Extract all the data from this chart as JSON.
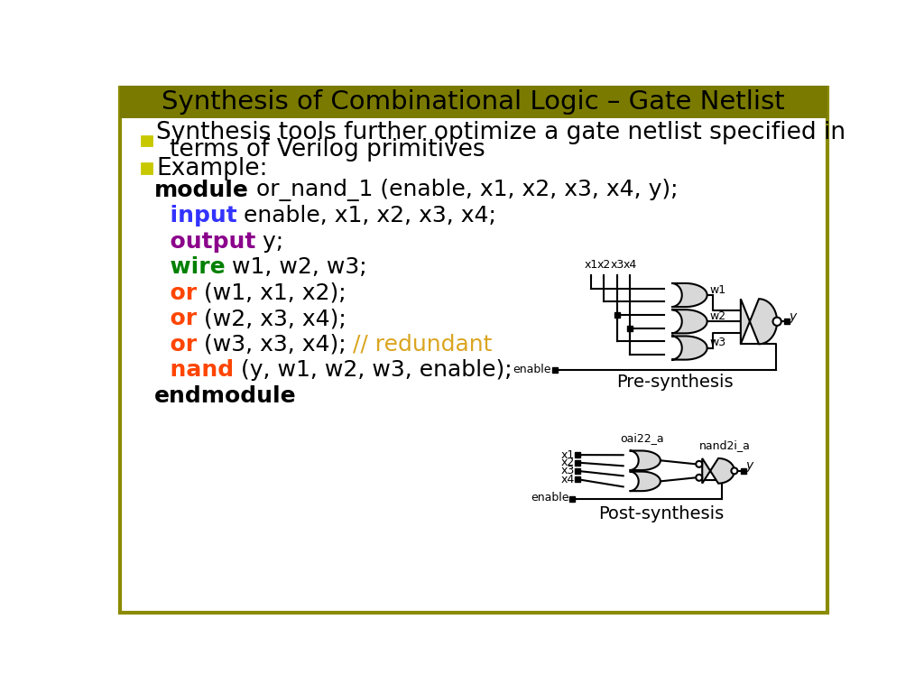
{
  "title": "Synthesis of Combinational Logic – Gate Netlist",
  "title_bg_top": "#6B6B00",
  "title_bg_bot": "#9B9B00",
  "title_fg": "#000000",
  "bg_color": "#FFFFFF",
  "border_color": "#8B8B00",
  "bullet_color": "#C8C800",
  "code_lines": [
    {
      "keyword": "module",
      "kw_color": "#000000",
      "rest": " or_nand_1 (enable, x1, x2, x3, x4, y);",
      "comment": ""
    },
    {
      "keyword": "  input",
      "kw_color": "#3333FF",
      "rest": " enable, x1, x2, x3, x4;",
      "comment": ""
    },
    {
      "keyword": "  output",
      "kw_color": "#8B008B",
      "rest": " y;",
      "comment": ""
    },
    {
      "keyword": "  wire",
      "kw_color": "#008000",
      "rest": " w1, w2, w3;",
      "comment": ""
    },
    {
      "keyword": "  or",
      "kw_color": "#FF4500",
      "rest": " (w1, x1, x2);",
      "comment": ""
    },
    {
      "keyword": "  or",
      "kw_color": "#FF4500",
      "rest": " (w2, x3, x4);",
      "comment": ""
    },
    {
      "keyword": "  or",
      "kw_color": "#FF4500",
      "rest": " (w3, x3, x4); ",
      "comment": "// redundant"
    },
    {
      "keyword": "  nand",
      "kw_color": "#FF4500",
      "rest": " (y, w1, w2, w3, enable);",
      "comment": ""
    },
    {
      "keyword": "endmodule",
      "kw_color": "#000000",
      "rest": "",
      "comment": ""
    }
  ],
  "comment_color": "#DAA520",
  "pre_syn_label": "Pre-synthesis",
  "post_syn_label": "Post-synthesis",
  "oai_label": "oai22_a",
  "nand_label": "nand2i_a"
}
